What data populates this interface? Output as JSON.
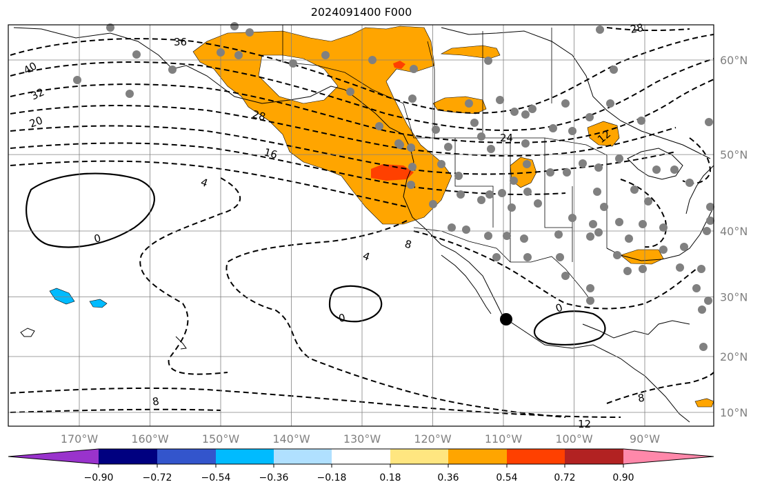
{
  "title": "2024091400 F000",
  "map": {
    "lon_range": [
      -180,
      -80
    ],
    "lat_range": [
      8,
      65
    ],
    "lat_labels": [
      "60°N",
      "50°N",
      "40°N",
      "30°N",
      "20°N",
      "10°N"
    ],
    "lon_labels": [
      "170°W",
      "160°W",
      "150°W",
      "140°W",
      "130°W",
      "120°W",
      "110°W",
      "100°W",
      "90°W"
    ],
    "contour_labels": [
      "36",
      "40",
      "32",
      "20",
      "28",
      "16",
      "24",
      "4",
      "0",
      "8",
      "4",
      "0",
      "0",
      "8",
      "12",
      "12",
      "8",
      "28"
    ],
    "marker": {
      "lon": -109,
      "lat": 23
    }
  },
  "colorbar": {
    "labels": [
      "−0.90",
      "−0.72",
      "−0.54",
      "−0.36",
      "−0.18",
      "0.18",
      "0.36",
      "0.54",
      "0.72",
      "0.90"
    ],
    "colors": [
      "#9933cc",
      "#000080",
      "#3355cc",
      "#00bbff",
      "#b0e0ff",
      "#ffffff",
      "#ffe680",
      "#ffa500",
      "#ff4000",
      "#b22222",
      "#ff88aa"
    ]
  }
}
